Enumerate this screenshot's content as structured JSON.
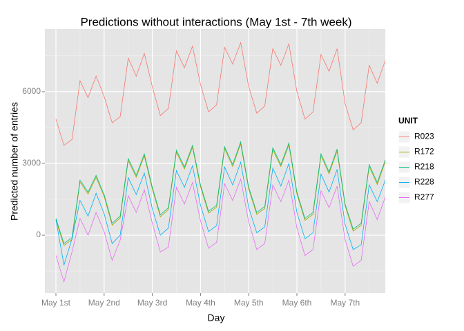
{
  "chart_data": {
    "type": "line",
    "title": "Predictions without interactions (May 1st - 7th week)",
    "xlabel": "Day",
    "ylabel": "Predicted number of entries",
    "legend_title": "UNIT",
    "legend": "right",
    "grid": true,
    "x": [
      0,
      4,
      8,
      12,
      16,
      20,
      24,
      28,
      32,
      36,
      40,
      44,
      48,
      52,
      56,
      60,
      64,
      68,
      72,
      76,
      80,
      84,
      88,
      92,
      96,
      100,
      104,
      108,
      112,
      116,
      120,
      124,
      128,
      132,
      136,
      140,
      144,
      148,
      152,
      156,
      160,
      164
    ],
    "xlim": [
      -5.5,
      164
    ],
    "xticks": [
      {
        "value": 0,
        "label": "May 1st"
      },
      {
        "value": 24,
        "label": "May 2nd"
      },
      {
        "value": 48,
        "label": "May 3rd"
      },
      {
        "value": 72,
        "label": "May 4th"
      },
      {
        "value": 96,
        "label": "May 5th"
      },
      {
        "value": 120,
        "label": "May 6th"
      },
      {
        "value": 144,
        "label": "May 7th"
      }
    ],
    "xminorticks": [
      12,
      36,
      60,
      84,
      108,
      132,
      156
    ],
    "ylim": [
      -2420,
      8620
    ],
    "yticks": [
      0,
      3000,
      6000
    ],
    "yminorticks": [
      -1500,
      1500,
      4500,
      7500
    ],
    "series": [
      {
        "name": "R023",
        "color": "#F8766D",
        "values": [
          4850,
          3750,
          4000,
          6450,
          5750,
          6650,
          5800,
          4700,
          4950,
          7400,
          6650,
          7600,
          6200,
          5000,
          5300,
          7700,
          7000,
          7900,
          6300,
          5150,
          5450,
          7850,
          7150,
          8050,
          6200,
          5100,
          5400,
          7800,
          7100,
          8000,
          6000,
          4850,
          5150,
          7550,
          6850,
          7800,
          5500,
          4400,
          4700,
          7100,
          6350,
          7300
        ]
      },
      {
        "name": "R172",
        "color": "#A3A500",
        "values": [
          620,
          -430,
          -180,
          2220,
          1720,
          2420,
          1620,
          420,
          720,
          3120,
          2420,
          3320,
          1920,
          770,
          1070,
          3470,
          2770,
          3670,
          2020,
          920,
          1170,
          3620,
          2870,
          3820,
          1920,
          870,
          1120,
          3570,
          2870,
          3770,
          1720,
          620,
          870,
          3320,
          2570,
          3520,
          1220,
          170,
          420,
          2870,
          2120,
          3070
        ]
      },
      {
        "name": "R218",
        "color": "#00BF7D",
        "values": [
          700,
          -350,
          -100,
          2300,
          1800,
          2500,
          1700,
          500,
          800,
          3200,
          2500,
          3400,
          2000,
          850,
          1150,
          3550,
          2850,
          3750,
          2100,
          1000,
          1250,
          3700,
          2950,
          3900,
          2000,
          950,
          1200,
          3650,
          2950,
          3850,
          1800,
          700,
          950,
          3400,
          2650,
          3600,
          1300,
          250,
          500,
          2950,
          2200,
          3150
        ]
      },
      {
        "name": "R228",
        "color": "#00B0F6",
        "values": [
          650,
          -1250,
          -150,
          1450,
          800,
          1750,
          900,
          -350,
          0,
          2400,
          1700,
          2600,
          1100,
          0,
          300,
          2700,
          2000,
          2900,
          1250,
          150,
          400,
          2850,
          2100,
          3050,
          1150,
          100,
          350,
          2800,
          2050,
          3000,
          950,
          -150,
          100,
          2550,
          1800,
          2750,
          450,
          -600,
          -400,
          2100,
          1400,
          2300
        ]
      },
      {
        "name": "R277",
        "color": "#E76BF3",
        "values": [
          -850,
          -1950,
          -700,
          700,
          0,
          950,
          150,
          -1050,
          -200,
          1650,
          950,
          1900,
          500,
          -700,
          -500,
          2000,
          1300,
          2200,
          600,
          -550,
          -300,
          2150,
          1450,
          2350,
          550,
          -600,
          -350,
          2100,
          1400,
          2300,
          300,
          -850,
          -600,
          1850,
          1150,
          2050,
          -200,
          -1300,
          -1050,
          1400,
          650,
          1600
        ]
      }
    ]
  }
}
